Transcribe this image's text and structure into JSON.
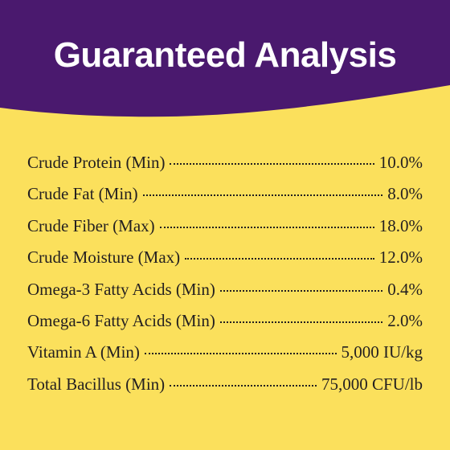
{
  "header": {
    "title": "Guaranteed Analysis"
  },
  "table": {
    "rows": [
      [
        "Crude Protein (Min)",
        "10.0%"
      ],
      [
        "Crude Fat (Min)",
        "8.0%"
      ],
      [
        "Crude Fiber (Max)",
        "18.0%"
      ],
      [
        "Crude Moisture (Max)",
        "12.0%"
      ],
      [
        "Omega-3 Fatty Acids (Min)",
        "0.4%"
      ],
      [
        "Omega-6 Fatty Acids (Min)",
        "2.0%"
      ],
      [
        "Vitamin A (Min)",
        "5,000 IU/kg"
      ],
      [
        "Total Bacillus (Min)",
        "75,000 CFU/lb"
      ]
    ]
  }
}
